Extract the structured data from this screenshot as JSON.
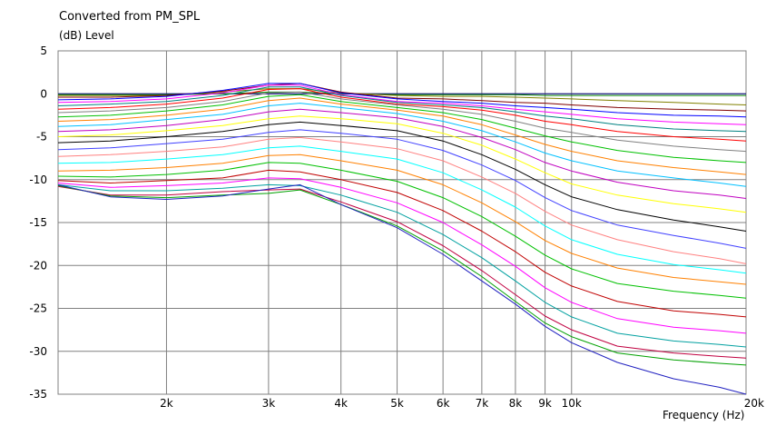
{
  "chart_data": {
    "type": "line",
    "title": "Converted from PM_SPL",
    "ylabel": "(dB)  Level",
    "xlabel": "Frequency  (Hz)",
    "x_scale": "log",
    "xlim": [
      1300,
      20000
    ],
    "ylim": [
      -35,
      5
    ],
    "grid": true,
    "x_ticks": [
      {
        "v": 2000,
        "label": "2k"
      },
      {
        "v": 3000,
        "label": "3k"
      },
      {
        "v": 4000,
        "label": "4k"
      },
      {
        "v": 5000,
        "label": "5k"
      },
      {
        "v": 6000,
        "label": "6k"
      },
      {
        "v": 7000,
        "label": "7k"
      },
      {
        "v": 8000,
        "label": "8k"
      },
      {
        "v": 9000,
        "label": "9k"
      },
      {
        "v": 10000,
        "label": "10k"
      },
      {
        "v": 20000,
        "label": "20k"
      }
    ],
    "y_ticks": [
      {
        "v": 5,
        "label": "5"
      },
      {
        "v": 0,
        "label": "0"
      },
      {
        "v": -5,
        "label": "-5"
      },
      {
        "v": -10,
        "label": "-10"
      },
      {
        "v": -15,
        "label": "-15"
      },
      {
        "v": -20,
        "label": "-20"
      },
      {
        "v": -25,
        "label": "-25"
      },
      {
        "v": -30,
        "label": "-30"
      },
      {
        "v": -35,
        "label": "-35"
      }
    ],
    "x": [
      1300,
      1600,
      2000,
      2500,
      3000,
      3400,
      4000,
      5000,
      6000,
      7000,
      8000,
      9000,
      10000,
      12000,
      15000,
      18000,
      20000
    ],
    "series": [
      {
        "color": "#000080",
        "values": [
          0,
          0,
          0,
          0,
          0,
          0,
          0,
          0,
          0,
          0,
          0,
          0,
          0,
          0,
          0,
          0,
          0
        ]
      },
      {
        "color": "#008000",
        "values": [
          -0.1,
          -0.1,
          -0.1,
          0,
          0.2,
          0.2,
          0,
          -0.1,
          -0.1,
          -0.1,
          -0.1,
          -0.2,
          -0.2,
          -0.2,
          -0.2,
          -0.2,
          -0.2
        ]
      },
      {
        "color": "#808000",
        "values": [
          -0.2,
          -0.2,
          -0.2,
          0.2,
          0.6,
          0.6,
          0.1,
          -0.2,
          -0.3,
          -0.3,
          -0.4,
          -0.5,
          -0.6,
          -0.8,
          -1.0,
          -1.2,
          -1.3
        ]
      },
      {
        "color": "#800000",
        "values": [
          -0.4,
          -0.4,
          -0.2,
          0.3,
          1.0,
          1.2,
          0.2,
          -0.5,
          -0.6,
          -0.8,
          -1.0,
          -1.1,
          -1.3,
          -1.6,
          -1.8,
          -1.9,
          -2.0
        ]
      },
      {
        "color": "#0000ff",
        "values": [
          -0.7,
          -0.6,
          -0.3,
          0.4,
          1.2,
          1.2,
          0.1,
          -0.6,
          -0.9,
          -1.1,
          -1.4,
          -1.6,
          -1.8,
          -2.2,
          -2.5,
          -2.6,
          -2.7
        ]
      },
      {
        "color": "#ff00ff",
        "values": [
          -1.0,
          -0.9,
          -0.6,
          0.1,
          1.0,
          1.0,
          -0.1,
          -0.9,
          -1.1,
          -1.4,
          -1.8,
          -2.1,
          -2.4,
          -2.9,
          -3.3,
          -3.5,
          -3.6
        ]
      },
      {
        "color": "#008080",
        "values": [
          -1.4,
          -1.2,
          -0.9,
          -0.2,
          0.8,
          0.8,
          -0.2,
          -1.0,
          -1.3,
          -1.6,
          -2.1,
          -2.6,
          -2.9,
          -3.6,
          -4.1,
          -4.3,
          -4.4
        ]
      },
      {
        "color": "#ff0000",
        "values": [
          -1.8,
          -1.6,
          -1.2,
          -0.5,
          0.5,
          0.6,
          -0.4,
          -1.2,
          -1.5,
          -1.9,
          -2.5,
          -3.2,
          -3.6,
          -4.4,
          -5.0,
          -5.3,
          -5.5
        ]
      },
      {
        "color": "#808080",
        "values": [
          -2.2,
          -2.0,
          -1.6,
          -0.9,
          0.1,
          0.2,
          -0.6,
          -1.3,
          -1.8,
          -2.4,
          -3.2,
          -4.0,
          -4.5,
          -5.4,
          -6.1,
          -6.5,
          -6.7
        ]
      },
      {
        "color": "#00c000",
        "values": [
          -2.7,
          -2.5,
          -2.0,
          -1.3,
          -0.3,
          -0.1,
          -0.9,
          -1.6,
          -2.2,
          -3.0,
          -4.0,
          -4.9,
          -5.6,
          -6.6,
          -7.4,
          -7.8,
          -8.0
        ]
      },
      {
        "color": "#ff8000",
        "values": [
          -3.2,
          -3.0,
          -2.5,
          -1.8,
          -0.8,
          -0.5,
          -1.2,
          -1.9,
          -2.6,
          -3.6,
          -4.8,
          -5.9,
          -6.7,
          -7.8,
          -8.6,
          -9.1,
          -9.4
        ]
      },
      {
        "color": "#00c0ff",
        "values": [
          -3.8,
          -3.6,
          -3.0,
          -2.4,
          -1.4,
          -1.1,
          -1.6,
          -2.3,
          -3.2,
          -4.3,
          -5.6,
          -6.9,
          -7.8,
          -9.0,
          -9.8,
          -10.4,
          -10.8
        ]
      },
      {
        "color": "#c000c0",
        "values": [
          -4.4,
          -4.2,
          -3.7,
          -3.0,
          -2.1,
          -1.8,
          -2.2,
          -2.8,
          -3.8,
          -5.1,
          -6.5,
          -8.0,
          -9.0,
          -10.3,
          -11.3,
          -11.8,
          -12.2
        ]
      },
      {
        "color": "#ffff00",
        "values": [
          -5.0,
          -4.8,
          -4.3,
          -3.7,
          -2.9,
          -2.6,
          -2.9,
          -3.5,
          -4.6,
          -6.0,
          -7.6,
          -9.2,
          -10.5,
          -11.8,
          -12.8,
          -13.4,
          -13.8
        ]
      },
      {
        "color": "#000000",
        "values": [
          -5.7,
          -5.5,
          -5.0,
          -4.4,
          -3.6,
          -3.3,
          -3.7,
          -4.3,
          -5.5,
          -7.1,
          -8.8,
          -10.6,
          -12.0,
          -13.5,
          -14.7,
          -15.5,
          -16.0
        ]
      },
      {
        "color": "#4040ff",
        "values": [
          -6.5,
          -6.3,
          -5.8,
          -5.3,
          -4.5,
          -4.2,
          -4.6,
          -5.3,
          -6.6,
          -8.3,
          -10.1,
          -12.1,
          -13.6,
          -15.3,
          -16.5,
          -17.4,
          -18.0
        ]
      },
      {
        "color": "#ff8080",
        "values": [
          -7.3,
          -7.1,
          -6.7,
          -6.2,
          -5.3,
          -5.1,
          -5.6,
          -6.4,
          -7.8,
          -9.7,
          -11.6,
          -13.7,
          -15.3,
          -17.0,
          -18.4,
          -19.2,
          -19.8
        ]
      },
      {
        "color": "#00ffff",
        "values": [
          -8.1,
          -8.0,
          -7.6,
          -7.1,
          -6.3,
          -6.1,
          -6.7,
          -7.6,
          -9.2,
          -11.2,
          -13.2,
          -15.4,
          -17.0,
          -18.7,
          -19.9,
          -20.5,
          -20.9
        ]
      },
      {
        "color": "#ff8000",
        "values": [
          -9.0,
          -8.9,
          -8.6,
          -8.1,
          -7.2,
          -7.1,
          -7.8,
          -8.9,
          -10.6,
          -12.7,
          -14.9,
          -17.1,
          -18.6,
          -20.3,
          -21.4,
          -21.9,
          -22.2
        ]
      },
      {
        "color": "#00c000",
        "values": [
          -9.6,
          -9.7,
          -9.4,
          -8.9,
          -8.0,
          -8.1,
          -8.9,
          -10.2,
          -12.1,
          -14.3,
          -16.6,
          -18.8,
          -20.4,
          -22.1,
          -23.0,
          -23.5,
          -23.8
        ]
      },
      {
        "color": "#c00000",
        "values": [
          -10.1,
          -10.4,
          -10.1,
          -9.8,
          -8.9,
          -9.1,
          -10.0,
          -11.5,
          -13.6,
          -16.0,
          -18.4,
          -20.8,
          -22.4,
          -24.2,
          -25.3,
          -25.7,
          -26.0
        ]
      },
      {
        "color": "#ff00ff",
        "values": [
          -10.4,
          -10.9,
          -10.7,
          -10.4,
          -9.8,
          -9.9,
          -10.9,
          -12.7,
          -15.0,
          -17.6,
          -20.1,
          -22.6,
          -24.3,
          -26.2,
          -27.2,
          -27.6,
          -27.9
        ]
      },
      {
        "color": "#00a0a0",
        "values": [
          -10.6,
          -11.3,
          -11.3,
          -11.0,
          -10.6,
          -10.7,
          -11.8,
          -13.8,
          -16.4,
          -19.1,
          -21.8,
          -24.3,
          -26.0,
          -27.9,
          -28.8,
          -29.2,
          -29.5
        ]
      },
      {
        "color": "#c00040",
        "values": [
          -10.8,
          -11.8,
          -11.8,
          -11.4,
          -11.2,
          -11.1,
          -12.6,
          -14.9,
          -17.7,
          -20.6,
          -23.4,
          -25.9,
          -27.5,
          -29.4,
          -30.2,
          -30.6,
          -30.8
        ]
      },
      {
        "color": "#00a000",
        "values": [
          -10.7,
          -11.9,
          -12.1,
          -11.8,
          -11.6,
          -11.2,
          -12.9,
          -15.4,
          -18.3,
          -21.3,
          -24.2,
          -26.7,
          -28.3,
          -30.2,
          -31.0,
          -31.4,
          -31.6
        ]
      },
      {
        "color": "#2020c0",
        "values": [
          -10.6,
          -12.0,
          -12.3,
          -11.9,
          -11.1,
          -10.6,
          -12.9,
          -15.6,
          -18.7,
          -21.8,
          -24.5,
          -27.1,
          -29.0,
          -31.3,
          -33.2,
          -34.2,
          -35.0
        ]
      }
    ]
  }
}
